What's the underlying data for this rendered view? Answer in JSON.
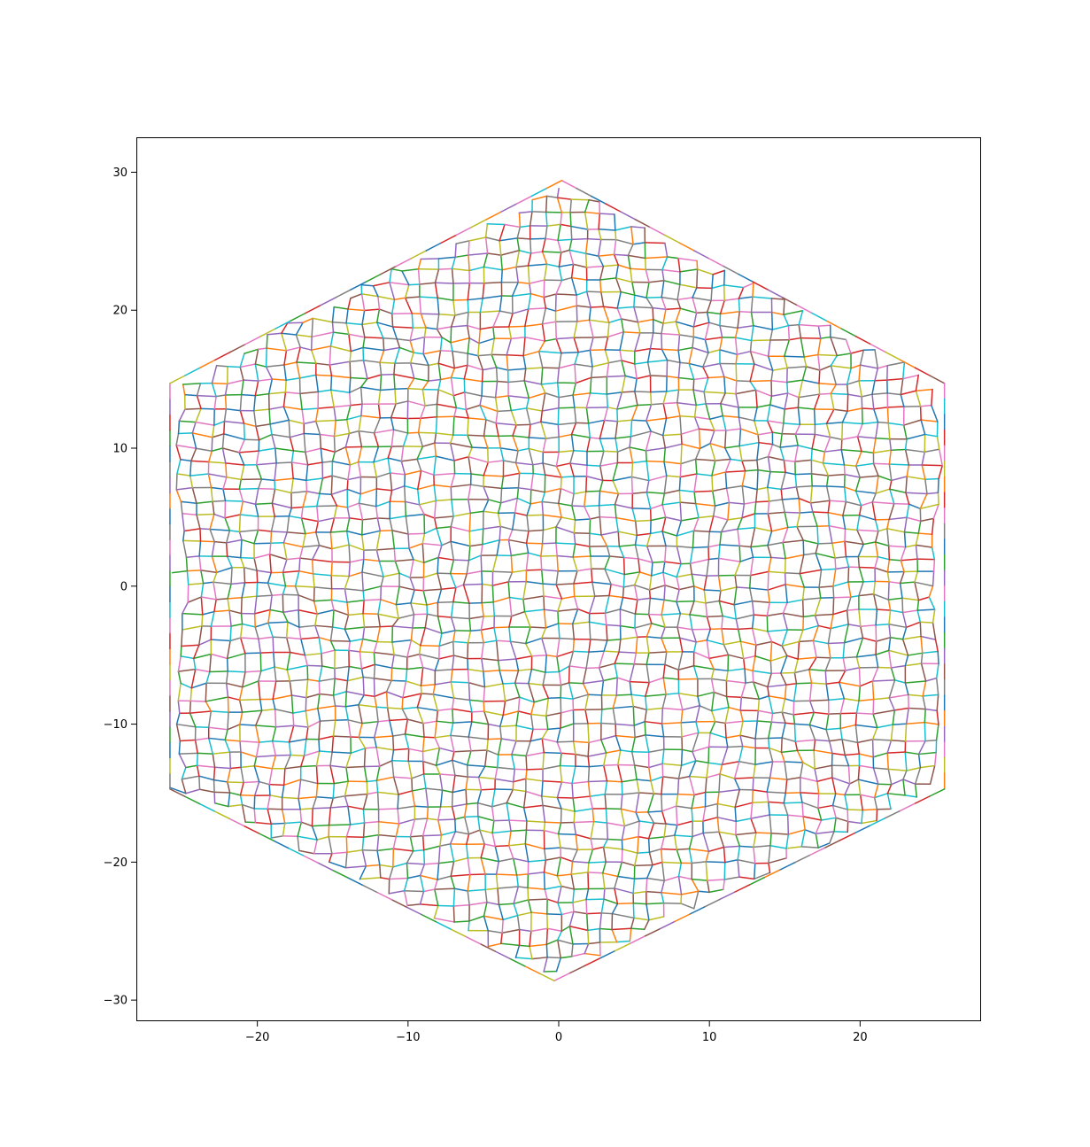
{
  "chart_data": {
    "type": "line",
    "title": "",
    "xlabel": "",
    "ylabel": "",
    "xlim": [
      -28,
      28
    ],
    "ylim": [
      -31.5,
      32.5
    ],
    "x_ticks": [
      -20,
      -10,
      0,
      10,
      20
    ],
    "y_ticks": [
      -30,
      -20,
      -10,
      0,
      10,
      20,
      30
    ],
    "x_tick_labels": [
      "−20",
      "−10",
      "0",
      "10",
      "20"
    ],
    "y_tick_labels": [
      "−30",
      "−20",
      "−10",
      "0",
      "10",
      "20",
      "30"
    ],
    "grid": false,
    "legend": "none",
    "aspect": "equal",
    "description_shape": "hexagonal",
    "shape": {
      "kind": "hexagon",
      "vertices": [
        [
          0.2,
          29.4
        ],
        [
          25.6,
          14.7
        ],
        [
          25.6,
          -14.7
        ],
        [
          -0.3,
          -28.6
        ],
        [
          -25.8,
          -14.7
        ],
        [
          -25.8,
          14.7
        ]
      ],
      "mesh_spacing": 1.0
    },
    "series_colors": [
      "#1f77b4",
      "#ff7f0e",
      "#2ca02c",
      "#d62728",
      "#9467bd",
      "#8c564b",
      "#e377c2",
      "#7f7f7f",
      "#bcbd22",
      "#17becf"
    ]
  }
}
